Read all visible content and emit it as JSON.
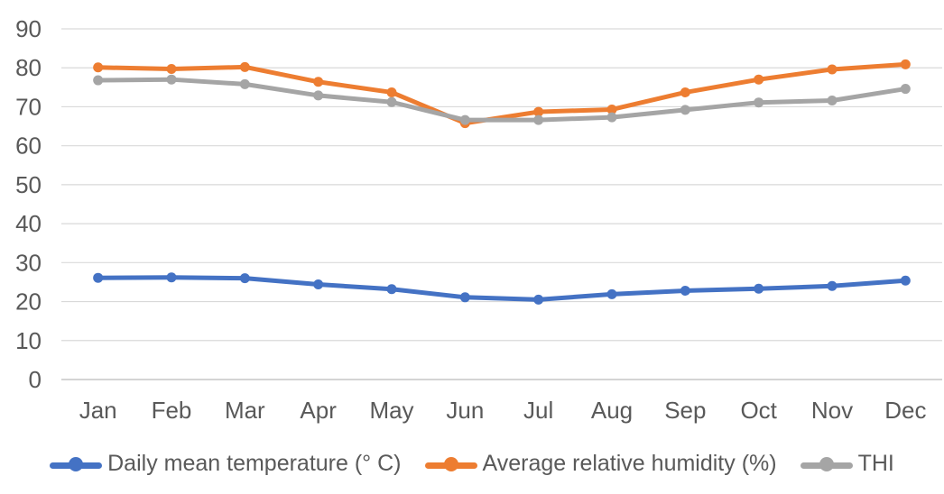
{
  "style": {
    "background": "#FFFFFF",
    "grid_color": "#D9D9D9",
    "baseline_color": "#C6C6C6",
    "axis_label_color": "#595959"
  },
  "chart_data": {
    "type": "line",
    "title": "",
    "xlabel": "",
    "ylabel": "",
    "categories": [
      "Jan",
      "Feb",
      "Mar",
      "Apr",
      "May",
      "Jun",
      "Jul",
      "Aug",
      "Sep",
      "Oct",
      "Nov",
      "Dec"
    ],
    "series": [
      {
        "name": "Daily mean temperature (° C)",
        "color": "#4472C4",
        "values": [
          26.1,
          26.2,
          26.0,
          24.4,
          23.2,
          21.1,
          20.5,
          21.9,
          22.8,
          23.3,
          24.0,
          25.4
        ]
      },
      {
        "name": "Average relative humidity (%)",
        "color": "#ED7D31",
        "values": [
          80.1,
          79.7,
          80.2,
          76.4,
          73.7,
          65.8,
          68.7,
          69.3,
          73.7,
          77.0,
          79.6,
          80.9
        ]
      },
      {
        "name": "THI",
        "color": "#A5A5A5",
        "values": [
          76.8,
          77.0,
          75.8,
          72.9,
          71.2,
          66.6,
          66.6,
          67.3,
          69.2,
          71.1,
          71.6,
          74.6
        ]
      }
    ],
    "ylim": [
      0,
      90
    ],
    "yticks": [
      0,
      10,
      20,
      30,
      40,
      50,
      60,
      70,
      80,
      90
    ],
    "grid": true,
    "legend_position": "bottom",
    "marker": "circle"
  }
}
